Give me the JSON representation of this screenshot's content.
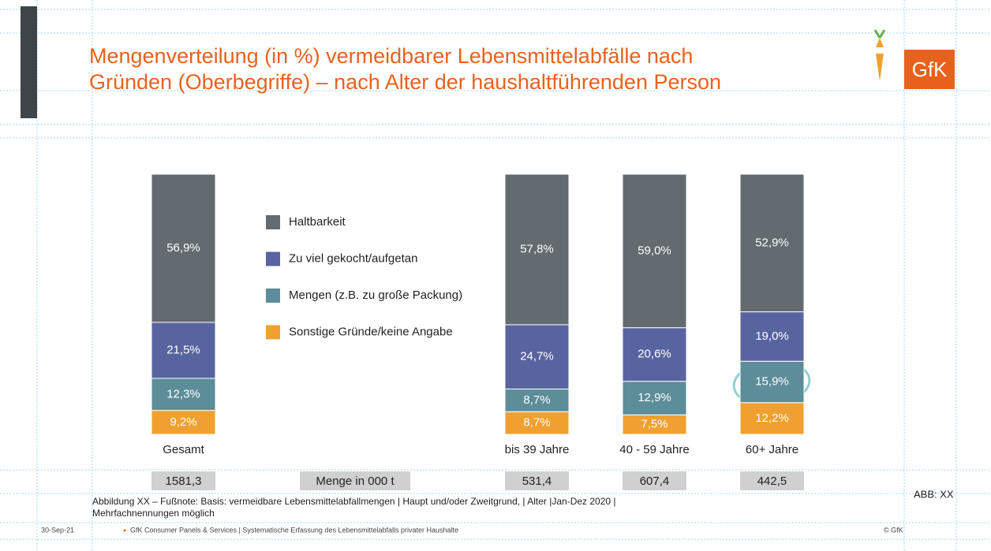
{
  "title": [
    "Mengenverteilung (in %) vermeidbarer Lebensmittelabfälle nach",
    "Gründen (Oberbegriffe) – nach Alter der haushaltführenden Person"
  ],
  "logo": "GfK",
  "chart_data": {
    "type": "stacked_bar",
    "categories": [
      "Gesamt",
      "bis 39 Jahre",
      "40 - 59 Jahre",
      "60+ Jahre"
    ],
    "series": [
      {
        "name": "Haltbarkeit",
        "color": "#636a70",
        "values": [
          56.9,
          57.8,
          59.0,
          52.9
        ],
        "value_labels": [
          "56,9%",
          "57,8%",
          "59,0%",
          "52,9%"
        ]
      },
      {
        "name": "Zu viel gekocht/aufgetan",
        "color": "#5864a0",
        "values": [
          21.5,
          24.7,
          20.6,
          19.0
        ],
        "value_labels": [
          "21,5%",
          "24,7%",
          "20,6%",
          "19,0%"
        ]
      },
      {
        "name": "Mengen (z.B. zu große Packung)",
        "color": "#5c8d99",
        "values": [
          12.3,
          8.7,
          12.9,
          15.9
        ],
        "value_labels": [
          "12,3%",
          "8,7%",
          "12,9%",
          "15,9%"
        ]
      },
      {
        "name": "Sonstige Gründe/keine Angabe",
        "color": "#f0a030",
        "values": [
          9.2,
          8.7,
          7.5,
          12.2
        ],
        "value_labels": [
          "9,2%",
          "8,7%",
          "7,5%",
          "12,2%"
        ]
      }
    ]
  },
  "totals": {
    "label": "Menge in 000 t",
    "values": [
      "1581,3",
      "531,4",
      "607,4",
      "442,5"
    ]
  },
  "footnote": [
    "Abbildung XX – Fußnote: Basis: vermeidbare Lebensmittelabfallmengen | Haupt und/oder Zweitgrund, | Alter |Jan-Dez 2020 |",
    "Mehrfachnennungen möglich"
  ],
  "figure_id": "ABB: XX",
  "footer": {
    "date": "30-Sep-21",
    "text": "GfK Consumer Panels & Services | Systematische Erfassung des Lebensmittelabfalls privater Haushalte",
    "copyright": "© GfK"
  }
}
